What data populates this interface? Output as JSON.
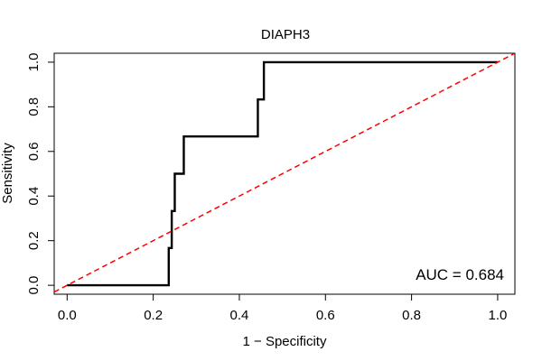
{
  "chart_data": {
    "type": "line",
    "title": "DIAPH3",
    "xlabel": "1 − Specificity",
    "ylabel": "Sensitivity",
    "xlim": [
      -0.03,
      1.04
    ],
    "ylim": [
      -0.04,
      1.04
    ],
    "xticks": [
      0.0,
      0.2,
      0.4,
      0.6,
      0.8,
      1.0
    ],
    "xtick_labels": [
      "0.0",
      "0.2",
      "0.4",
      "0.6",
      "0.8",
      "1.0"
    ],
    "yticks": [
      0.0,
      0.2,
      0.4,
      0.6,
      0.8,
      1.0
    ],
    "ytick_labels": [
      "0.0",
      "0.2",
      "0.4",
      "0.6",
      "0.8",
      "1.0"
    ],
    "grid": false,
    "series": [
      {
        "color": "#000000",
        "style": "step",
        "x": [
          0.0,
          0.236,
          0.236,
          0.243,
          0.243,
          0.25,
          0.25,
          0.257,
          0.257,
          0.271,
          0.271,
          0.443,
          0.443,
          0.457,
          0.457,
          1.0
        ],
        "y": [
          0.0,
          0.0,
          0.167,
          0.167,
          0.333,
          0.333,
          0.5,
          0.5,
          0.5,
          0.5,
          0.667,
          0.667,
          0.833,
          0.833,
          1.0,
          1.0
        ]
      },
      {
        "color": "#ff0000",
        "style": "dashed",
        "x": [
          -0.03,
          1.04
        ],
        "y": [
          -0.03,
          1.04
        ]
      }
    ],
    "annotations": [
      {
        "text": "AUC = 0.684",
        "position": "bottom-right"
      }
    ]
  }
}
